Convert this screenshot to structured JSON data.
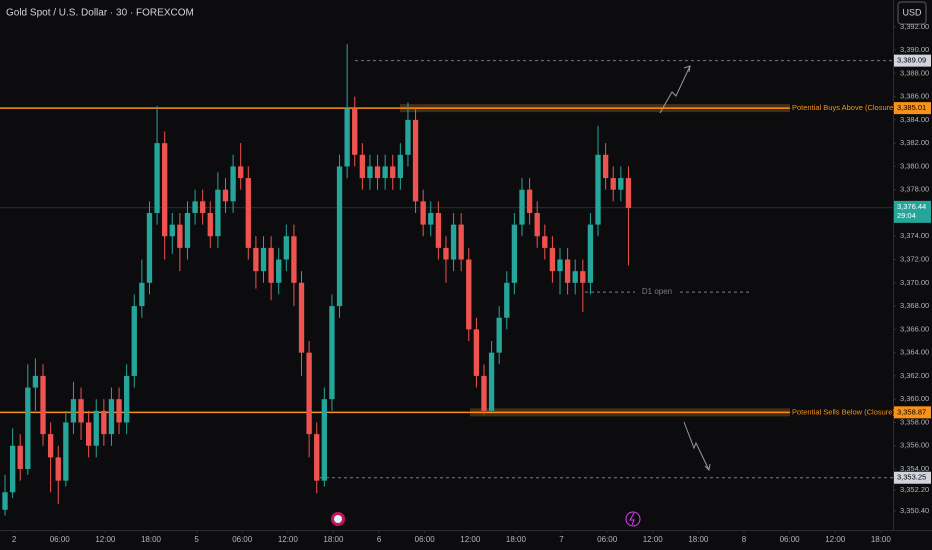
{
  "chart_data": {
    "type": "candlestick",
    "title": "Gold Spot / U.S. Dollar · 30 · FOREXCOM",
    "currency": "USD",
    "up_color": "#26a69a",
    "down_color": "#ef5350",
    "ylim": [
      3348.76,
      3394.3
    ],
    "xlim": [
      -0.66,
      116.8
    ],
    "yticks": [
      {
        "value": 3392,
        "label": "3,392.00"
      },
      {
        "value": 3390,
        "label": "3,390.00"
      },
      {
        "value": 3388,
        "label": "3,388.00"
      },
      {
        "value": 3386,
        "label": "3,386.00"
      },
      {
        "value": 3384,
        "label": "3,384.00"
      },
      {
        "value": 3382,
        "label": "3,382.00"
      },
      {
        "value": 3380,
        "label": "3,380.00"
      },
      {
        "value": 3378,
        "label": "3,378.00"
      },
      {
        "value": 3376,
        "label": "3,376.00"
      },
      {
        "value": 3374,
        "label": "3,374.00"
      },
      {
        "value": 3372,
        "label": "3,372.00"
      },
      {
        "value": 3370,
        "label": "3,370.00"
      },
      {
        "value": 3368,
        "label": "3,368.00"
      },
      {
        "value": 3366,
        "label": "3,366.00"
      },
      {
        "value": 3364,
        "label": "3,364.00"
      },
      {
        "value": 3362,
        "label": "3,362.00"
      },
      {
        "value": 3360,
        "label": "3,360.00"
      },
      {
        "value": 3358,
        "label": "3,358.00"
      },
      {
        "value": 3356,
        "label": "3,356.00"
      },
      {
        "value": 3354,
        "label": "3,354.00"
      },
      {
        "value": 3352.2,
        "label": "3,352.20"
      },
      {
        "value": 3350.4,
        "label": "3,350.40"
      }
    ],
    "xticks": [
      {
        "value": 1.2,
        "label": "2"
      },
      {
        "value": 7.2,
        "label": "06:00"
      },
      {
        "value": 13.2,
        "label": "12:00"
      },
      {
        "value": 19.2,
        "label": "18:00"
      },
      {
        "value": 25.2,
        "label": "5"
      },
      {
        "value": 31.2,
        "label": "06:00"
      },
      {
        "value": 37.2,
        "label": "12:00"
      },
      {
        "value": 43.2,
        "label": "18:00"
      },
      {
        "value": 49.2,
        "label": "6"
      },
      {
        "value": 55.2,
        "label": "06:00"
      },
      {
        "value": 61.2,
        "label": "12:00"
      },
      {
        "value": 67.2,
        "label": "18:00"
      },
      {
        "value": 73.2,
        "label": "7"
      },
      {
        "value": 79.2,
        "label": "06:00"
      },
      {
        "value": 85.2,
        "label": "12:00"
      },
      {
        "value": 91.2,
        "label": "18:00"
      },
      {
        "value": 97.2,
        "label": "8"
      },
      {
        "value": 103.2,
        "label": "06:00"
      },
      {
        "value": 109.2,
        "label": "12:00"
      },
      {
        "value": 115.2,
        "label": "18:00"
      }
    ],
    "open": [
      3350.5,
      3352,
      3356,
      3354,
      3361,
      3362,
      3357,
      3355,
      3353,
      3358,
      3360,
      3358,
      3356,
      3359,
      3357,
      3360,
      3358,
      3362,
      3368,
      3370,
      3376,
      3382,
      3374,
      3375,
      3373,
      3376,
      3377,
      3376,
      3374,
      3378,
      3377,
      3380,
      3379,
      3373,
      3371,
      3373,
      3370,
      3372,
      3374,
      3370,
      3364,
      3357,
      3353,
      3360,
      3368,
      3380,
      3385,
      3381,
      3379,
      3380,
      3379,
      3380,
      3379,
      3381,
      3384,
      3377,
      3375,
      3376,
      3373,
      3372,
      3375,
      3372,
      3366,
      3362,
      3359,
      3364,
      3367,
      3370,
      3375,
      3378,
      3376,
      3374,
      3373,
      3371,
      3372,
      3370,
      3371,
      3370,
      3375,
      3381,
      3379,
      3378,
      3379
    ],
    "high": [
      3353.5,
      3357.5,
      3357,
      3363,
      3363.5,
      3363,
      3358,
      3356,
      3359,
      3361.5,
      3361,
      3359,
      3360,
      3360,
      3361,
      3361,
      3363,
      3369,
      3372,
      3377,
      3385.2,
      3383,
      3376,
      3376,
      3377,
      3378,
      3378,
      3377,
      3379.5,
      3379,
      3381,
      3382,
      3380,
      3374,
      3374,
      3374,
      3373,
      3375,
      3375,
      3371,
      3365,
      3358,
      3361,
      3369,
      3381,
      3390.5,
      3386,
      3382,
      3381,
      3381,
      3381,
      3381,
      3382,
      3385.5,
      3385,
      3378,
      3377,
      3377,
      3374,
      3376,
      3376,
      3373,
      3367,
      3363,
      3365,
      3368,
      3371,
      3376,
      3379,
      3379,
      3377,
      3375,
      3374,
      3373,
      3373,
      3372,
      3372,
      3376,
      3383.5,
      3382,
      3380,
      3380,
      3380
    ],
    "low": [
      3350,
      3351.5,
      3353,
      3353.5,
      3359,
      3356,
      3352,
      3351,
      3352.5,
      3357,
      3356.5,
      3355,
      3355,
      3356,
      3356,
      3357,
      3357,
      3361,
      3367,
      3369,
      3375,
      3372,
      3372.5,
      3371,
      3372,
      3375,
      3375,
      3373,
      3373,
      3376,
      3376,
      3378,
      3372,
      3369.5,
      3370,
      3368.5,
      3369,
      3371,
      3368,
      3362,
      3355,
      3351.9,
      3352.5,
      3359,
      3367,
      3379,
      3380,
      3378,
      3378,
      3378,
      3378,
      3378,
      3378,
      3380,
      3376,
      3374,
      3374,
      3372,
      3370,
      3371,
      3371,
      3365,
      3361,
      3358.7,
      3358.9,
      3363,
      3366,
      3369,
      3374,
      3375,
      3373,
      3372,
      3370,
      3369,
      3369,
      3369,
      3367.5,
      3369,
      3374,
      3378,
      3377,
      3377,
      3371.5
    ],
    "close": [
      3352,
      3356,
      3354,
      3361,
      3362,
      3357,
      3355,
      3353,
      3358,
      3360,
      3358,
      3356,
      3359,
      3357,
      3360,
      3358,
      3362,
      3368,
      3370,
      3376,
      3382,
      3374,
      3375,
      3373,
      3376,
      3377,
      3376,
      3374,
      3378,
      3377,
      3380,
      3379,
      3373,
      3371,
      3373,
      3370,
      3372,
      3374,
      3370,
      3364,
      3357,
      3353,
      3360,
      3368,
      3380,
      3385,
      3381,
      3379,
      3380,
      3379,
      3380,
      3379,
      3381,
      3384,
      3377,
      3375,
      3376,
      3373,
      3372,
      3375,
      3372,
      3366,
      3362,
      3359,
      3364,
      3367,
      3370,
      3375,
      3378,
      3376,
      3374,
      3373,
      3371,
      3372,
      3370,
      3371,
      3370,
      3375,
      3381,
      3379,
      3378,
      3379,
      3376.44
    ],
    "levels": [
      {
        "value": 3385.01,
        "label": "3,385.01",
        "annotation": "Potential Buys Above (Closure)",
        "color": "#f7931a"
      },
      {
        "value": 3358.87,
        "label": "3,358.87",
        "annotation": "Potential Sells Below (Closure)",
        "color": "#f7931a"
      },
      {
        "value": 3389.09,
        "label": "3,389.09"
      },
      {
        "value": 3353.25,
        "label": "3,353.25"
      }
    ],
    "last_price": {
      "value": 3376.44,
      "label": "3,376.44",
      "countdown": "29:04"
    },
    "d1_open": {
      "value": 3369.2,
      "label": "D1 open"
    }
  }
}
